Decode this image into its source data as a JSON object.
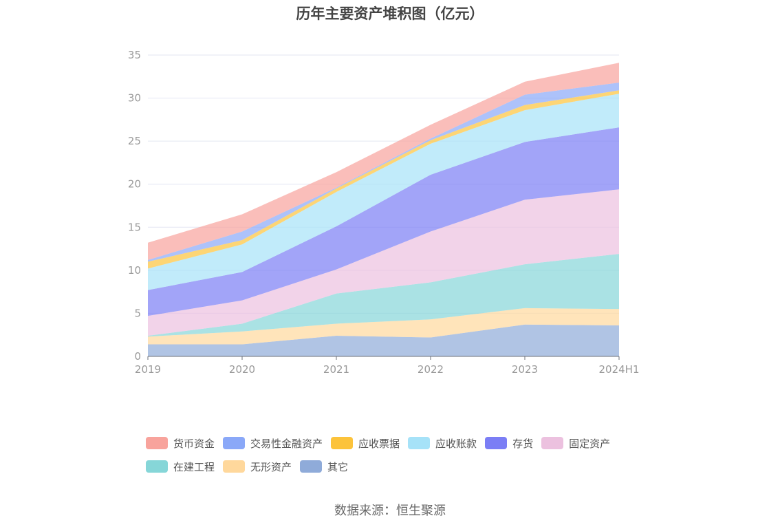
{
  "title": "历年主要资产堆积图（亿元）",
  "source": "数据来源：恒生聚源",
  "chart_data": {
    "type": "area",
    "stacked": true,
    "categories": [
      "2019",
      "2020",
      "2021",
      "2022",
      "2023",
      "2024H1"
    ],
    "ylim": [
      0,
      35
    ],
    "yticks": [
      0,
      5,
      10,
      15,
      20,
      25,
      30,
      35
    ],
    "grid": true,
    "legend_position": "bottom",
    "series": [
      {
        "name": "其它",
        "color": "#8fabd9",
        "values": [
          1.4,
          1.4,
          2.4,
          2.2,
          3.7,
          3.6
        ]
      },
      {
        "name": "无形资产",
        "color": "#ffd89c",
        "values": [
          0.9,
          1.5,
          1.4,
          2.1,
          1.9,
          1.9
        ]
      },
      {
        "name": "在建工程",
        "color": "#86d6d8",
        "values": [
          0.1,
          0.9,
          3.5,
          4.3,
          5.1,
          6.4
        ]
      },
      {
        "name": "固定资产",
        "color": "#ecc1df",
        "values": [
          2.3,
          2.7,
          2.8,
          5.9,
          7.5,
          7.5
        ]
      },
      {
        "name": "存货",
        "color": "#7b7ef5",
        "values": [
          3.0,
          3.3,
          5.0,
          6.6,
          6.7,
          7.2
        ]
      },
      {
        "name": "应收账款",
        "color": "#a6e2f8",
        "values": [
          2.5,
          3.2,
          4.0,
          3.6,
          3.7,
          3.9
        ]
      },
      {
        "name": "应收票据",
        "color": "#fcc33b",
        "values": [
          0.8,
          0.5,
          0.4,
          0.4,
          0.6,
          0.4
        ]
      },
      {
        "name": "交易性金融资产",
        "color": "#8aa8f8",
        "values": [
          0.2,
          1.0,
          0.1,
          0.2,
          1.2,
          0.9
        ]
      },
      {
        "name": "货币资金",
        "color": "#f8a39c",
        "values": [
          2.0,
          2.0,
          1.8,
          1.6,
          1.5,
          2.3
        ]
      }
    ],
    "legend_order": [
      "货币资金",
      "交易性金融资产",
      "应收票据",
      "应收账款",
      "存货",
      "固定资产",
      "在建工程",
      "无形资产",
      "其它"
    ]
  }
}
